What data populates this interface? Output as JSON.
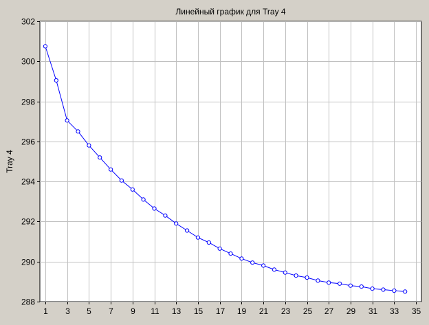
{
  "chart_data": {
    "type": "line",
    "title": "Линейный график для Tray 4",
    "xlabel": "",
    "ylabel": "Tray 4",
    "xlim": [
      0.5,
      35.5
    ],
    "ylim": [
      288,
      302
    ],
    "x_ticks": [
      1,
      3,
      5,
      7,
      9,
      11,
      13,
      15,
      17,
      19,
      21,
      23,
      25,
      27,
      29,
      31,
      33,
      35
    ],
    "y_ticks": [
      288,
      290,
      292,
      294,
      296,
      298,
      300,
      302
    ],
    "grid": true,
    "legend": "none",
    "colors": {
      "series": "#0000ff",
      "background": "#d4d0c8",
      "plot": "#ffffff",
      "grid": "#c0c0c0"
    },
    "series": [
      {
        "x": [
          1,
          2,
          3,
          4,
          5,
          6,
          7,
          8,
          9,
          10,
          11,
          12,
          13,
          14,
          15,
          16,
          17,
          18,
          19,
          20,
          21,
          22,
          23,
          24,
          25,
          26,
          27,
          28,
          29,
          30,
          31,
          32,
          33,
          34
        ],
        "values": [
          300.75,
          299.05,
          297.05,
          296.5,
          295.8,
          295.2,
          294.6,
          294.05,
          293.6,
          293.1,
          292.65,
          292.3,
          291.9,
          291.55,
          291.2,
          290.95,
          290.65,
          290.4,
          290.15,
          289.95,
          289.8,
          289.6,
          289.45,
          289.3,
          289.2,
          289.05,
          288.95,
          288.9,
          288.8,
          288.75,
          288.65,
          288.6,
          288.55,
          288.5
        ]
      }
    ]
  }
}
